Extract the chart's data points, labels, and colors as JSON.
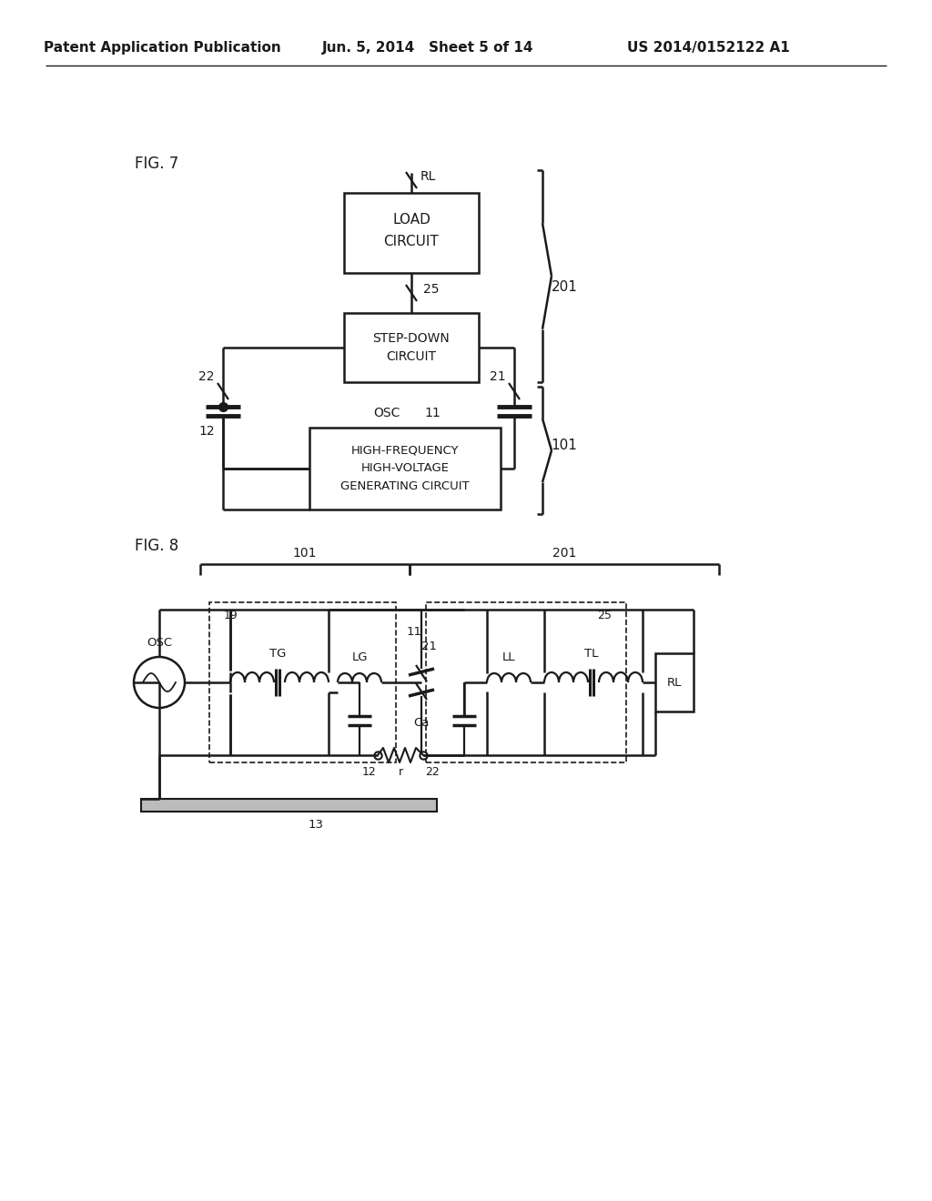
{
  "bg_color": "#ffffff",
  "header_left": "Patent Application Publication",
  "header_mid": "Jun. 5, 2014   Sheet 5 of 14",
  "header_right": "US 2014/0152122 A1",
  "fig7_label": "FIG. 7",
  "fig8_label": "FIG. 8",
  "line_color": "#1a1a1a",
  "text_color": "#1a1a1a"
}
